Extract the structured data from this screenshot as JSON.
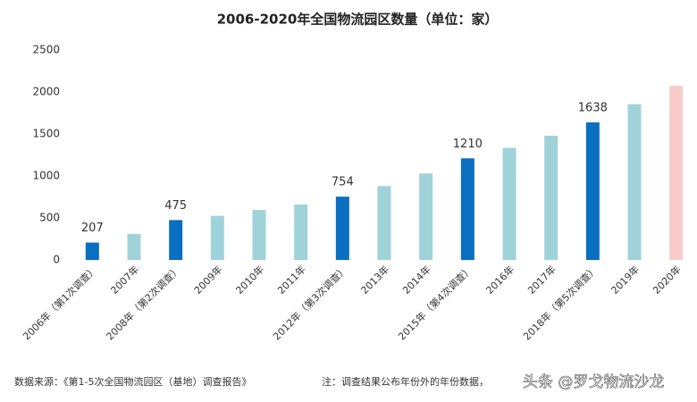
{
  "chart_data": {
    "type": "bar",
    "title": "2006-2020年全国物流园区数量（单位：家）",
    "categories": [
      "2006年（第1次调查）",
      "2007年",
      "2008年（第2次调查）",
      "2009年",
      "2010年",
      "2011年",
      "2012年（第3次调查）",
      "2013年",
      "2014年",
      "2015年（第4次调查）",
      "2016年",
      "2017年",
      "2018年（第5次调查）",
      "2019年",
      "2020年"
    ],
    "values": [
      207,
      310,
      475,
      525,
      595,
      660,
      754,
      880,
      1030,
      1210,
      1335,
      1480,
      1638,
      1855,
      2075
    ],
    "value_labels": [
      "207",
      null,
      "475",
      null,
      null,
      null,
      "754",
      null,
      null,
      "1210",
      null,
      null,
      "1638",
      null,
      null
    ],
    "colors": [
      "#0a6fbf",
      "#9fd3d9",
      "#0a6fbf",
      "#9fd3d9",
      "#9fd3d9",
      "#9fd3d9",
      "#0a6fbf",
      "#9fd3d9",
      "#9fd3d9",
      "#0a6fbf",
      "#9fd3d9",
      "#9fd3d9",
      "#0a6fbf",
      "#9fd3d9",
      "#f9cccc"
    ],
    "ylim": [
      0,
      2500
    ],
    "yticks": [
      0,
      500,
      1000,
      1500,
      2000,
      2500
    ],
    "grid": false,
    "source": "数据来源：《第1-5次全国物流园区（基地）调查报告》",
    "note": "注：调查结果公布年份外的年份数据，",
    "watermark": "头条 @罗戈物流沙龙"
  }
}
